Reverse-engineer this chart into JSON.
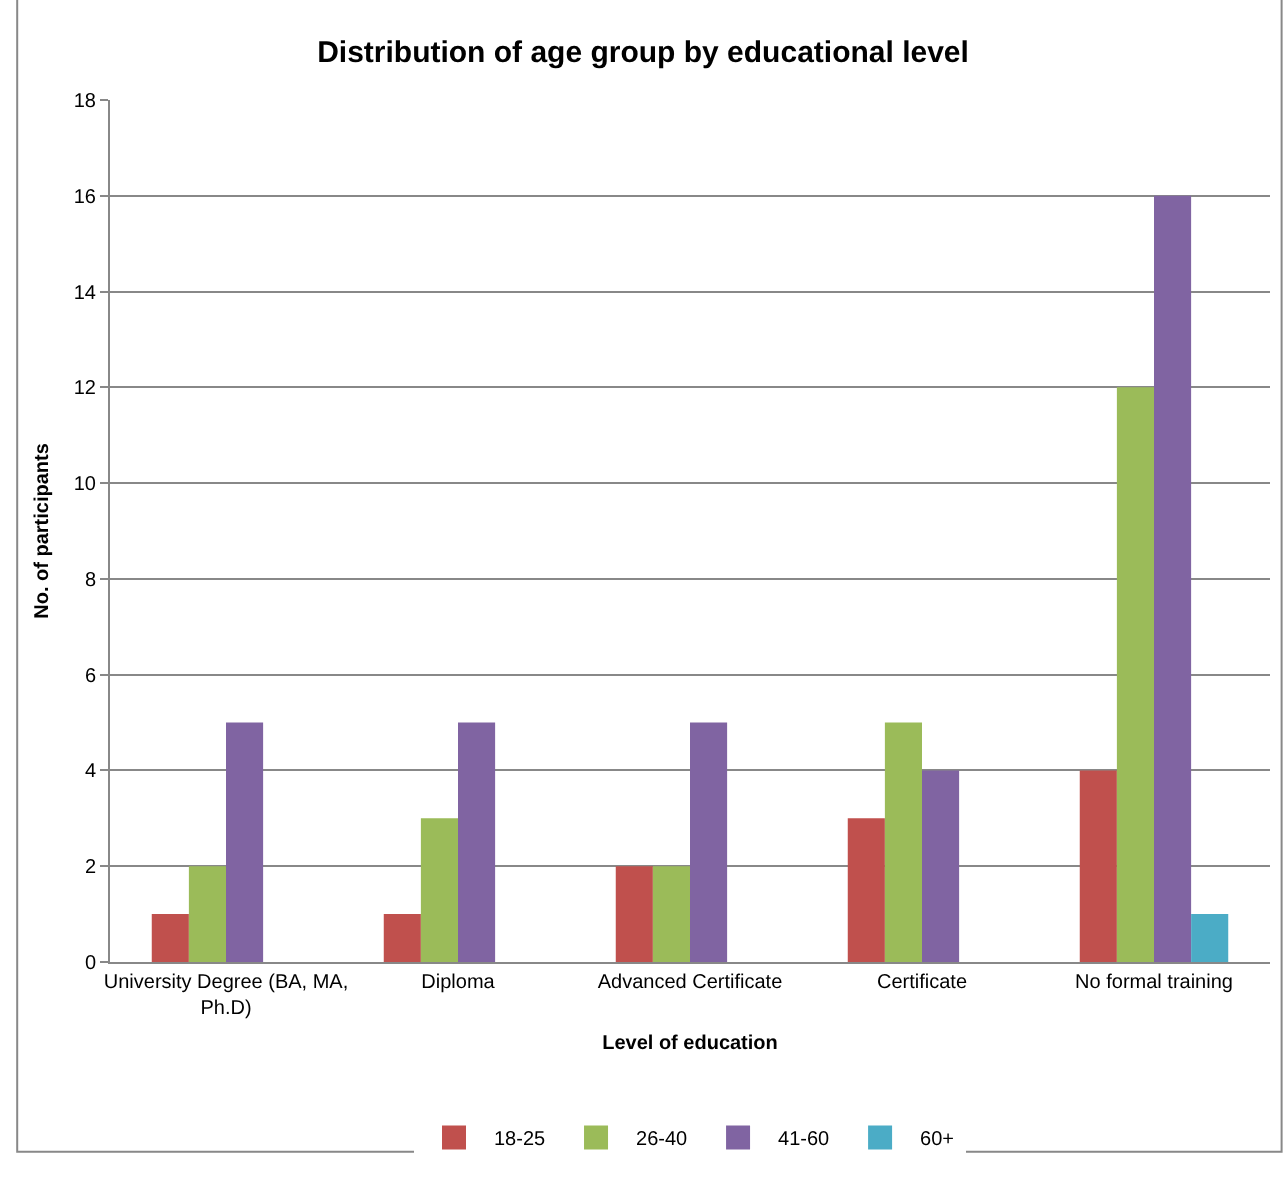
{
  "chart_data": {
    "type": "bar",
    "title": "Distribution of age group by educational level",
    "xlabel": "Level of education",
    "ylabel": "No. of participants",
    "categories": [
      "University Degree (BA, MA, Ph.D)",
      "Diploma",
      "Advanced Certificate",
      "Certificate",
      "No formal training"
    ],
    "series": [
      {
        "name": "18-25",
        "color": "#c0504d",
        "values": [
          1,
          1,
          2,
          3,
          4
        ]
      },
      {
        "name": "26-40",
        "color": "#9bbb59",
        "values": [
          2,
          3,
          2,
          5,
          12
        ]
      },
      {
        "name": "41-60",
        "color": "#8064a2",
        "values": [
          5,
          5,
          5,
          4,
          16
        ]
      },
      {
        "name": "60+",
        "color": "#4bacc6",
        "values": [
          0,
          0,
          0,
          0,
          1
        ]
      }
    ],
    "ylim": [
      0,
      18
    ],
    "yticks": [
      0,
      2,
      4,
      6,
      8,
      10,
      12,
      14,
      16,
      18
    ],
    "grid": "y",
    "legend": "bottom"
  }
}
